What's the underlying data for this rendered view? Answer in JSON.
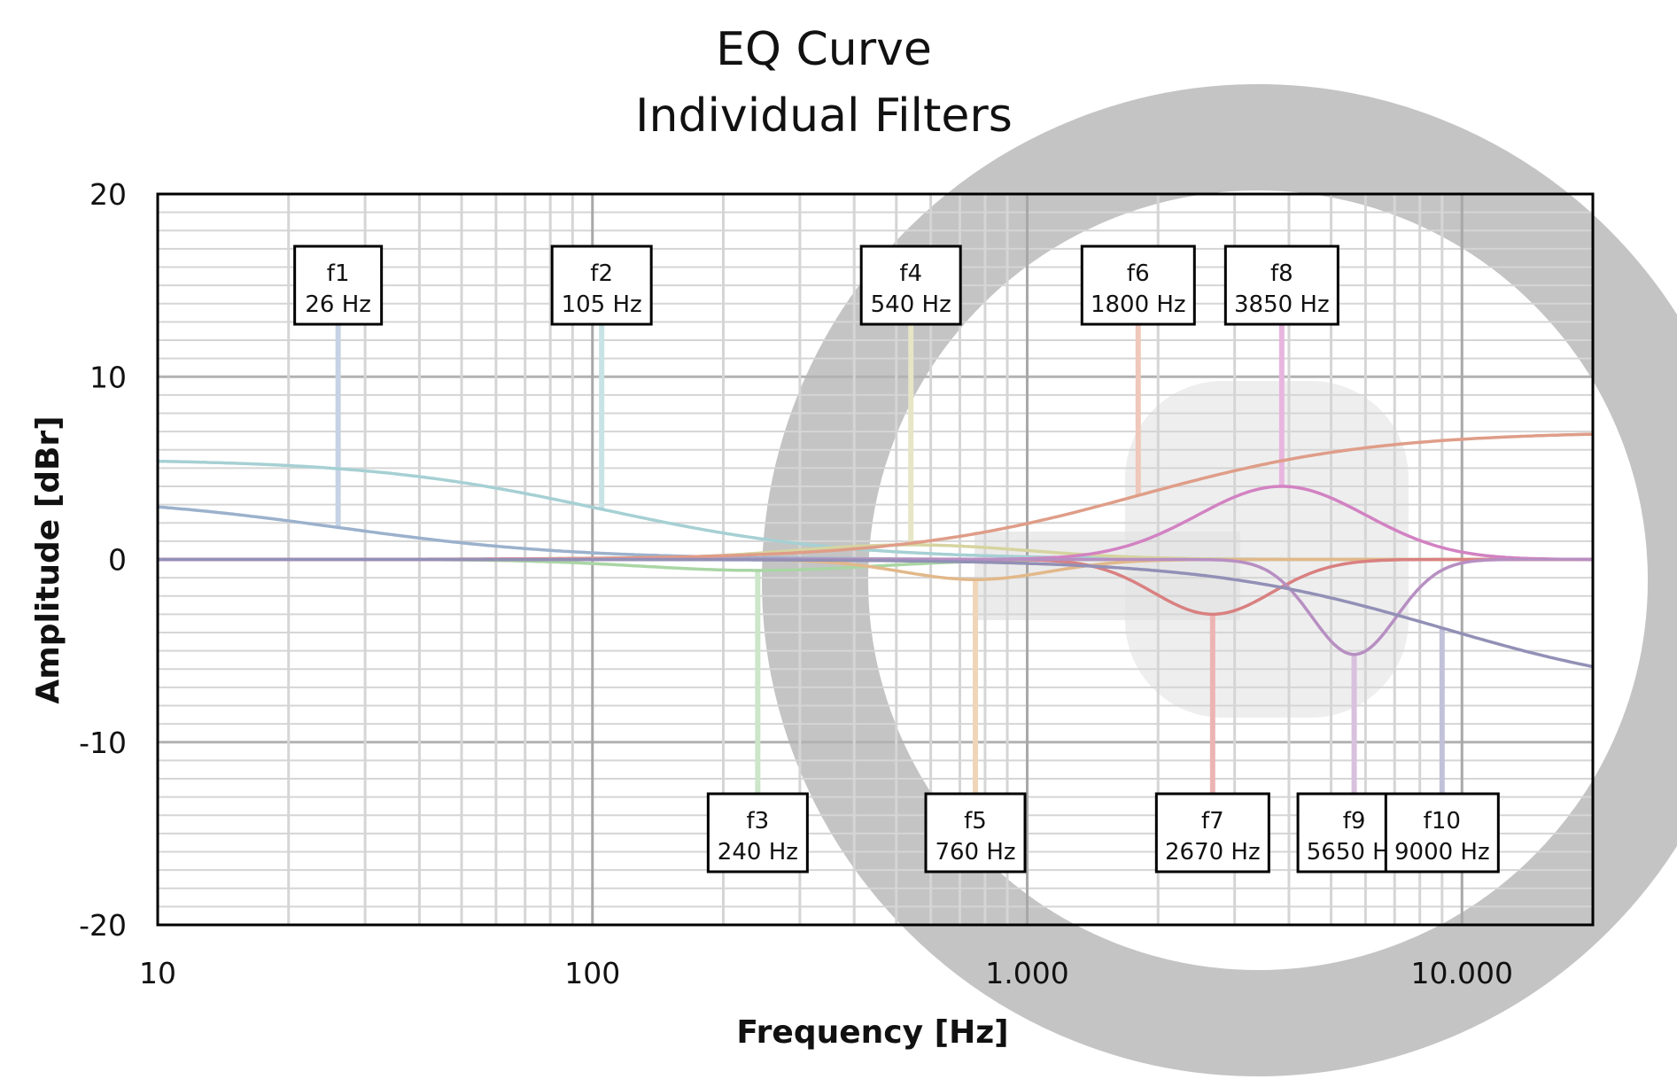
{
  "chart_data": {
    "type": "line",
    "title": "EQ Curve",
    "subtitle": "Individual  Filters",
    "xlabel": "Frequency [Hz]",
    "ylabel": "Amplitude  [dBr]",
    "xscale": "log",
    "xlim": [
      10,
      20000
    ],
    "ylim": [
      -20,
      20
    ],
    "x_ticks": [
      10,
      100,
      1000,
      10000
    ],
    "x_tick_labels": [
      "10",
      "100",
      "1.000",
      "10.000"
    ],
    "y_ticks": [
      20,
      10,
      0,
      -10,
      -20
    ],
    "y_tick_labels": [
      "20",
      "10",
      "0",
      "-10",
      "-20"
    ],
    "grid": true,
    "legend": "none",
    "series": [
      {
        "name": "f1",
        "label_line2": "26 Hz",
        "type": "lowshelf",
        "freq": 26,
        "gain": 3.5,
        "color": "#9bb1cc",
        "marker_color": "#c6d3e6",
        "label_pos": "top"
      },
      {
        "name": "f2",
        "label_line2": "105 Hz",
        "type": "lowshelf",
        "freq": 105,
        "gain": 5.5,
        "color": "#a6d0d3",
        "marker_color": "#c7e3e5",
        "label_pos": "top"
      },
      {
        "name": "f3",
        "label_line2": "240 Hz",
        "type": "peak",
        "freq": 240,
        "gain": -0.6,
        "q": 1.0,
        "color": "#a9d6a4",
        "marker_color": "#cbe6c8",
        "label_pos": "bottom"
      },
      {
        "name": "f4",
        "label_line2": "540 Hz",
        "type": "peak",
        "freq": 540,
        "gain": 0.8,
        "q": 1.0,
        "color": "#d6d4a0",
        "marker_color": "#e6e5c6",
        "label_pos": "top"
      },
      {
        "name": "f5",
        "label_line2": "760 Hz",
        "type": "peak",
        "freq": 760,
        "gain": -1.1,
        "q": 1.6,
        "color": "#e2b88a",
        "marker_color": "#f0d6b8",
        "label_pos": "bottom"
      },
      {
        "name": "f6",
        "label_line2": "1800 Hz",
        "type": "highshelf",
        "freq": 1800,
        "gain": 7.0,
        "color": "#df9d88",
        "marker_color": "#f0c7bb",
        "label_pos": "top"
      },
      {
        "name": "f7",
        "label_line2": "2670 Hz",
        "type": "peak",
        "freq": 2670,
        "gain": -3.0,
        "q": 2.0,
        "color": "#d98080",
        "marker_color": "#edb4b4",
        "label_pos": "bottom"
      },
      {
        "name": "f8",
        "label_line2": "3850 Hz",
        "type": "peak",
        "freq": 3850,
        "gain": 4.0,
        "q": 1.4,
        "color": "#d282c2",
        "marker_color": "#e7b6de",
        "label_pos": "top"
      },
      {
        "name": "f9",
        "label_line2": "5650 Hz",
        "type": "peak",
        "freq": 5650,
        "gain": -5.2,
        "q": 2.8,
        "color": "#b78fc2",
        "marker_color": "#d8c1de",
        "label_pos": "bottom"
      },
      {
        "name": "f10",
        "label_line2": "9000 Hz",
        "type": "highshelf",
        "freq": 9000,
        "gain": -7.5,
        "color": "#9290b6",
        "marker_color": "#c2c1da",
        "label_pos": "bottom"
      }
    ],
    "watermark": {
      "shape": "circle-logo",
      "color": "#c4c4c4"
    }
  }
}
